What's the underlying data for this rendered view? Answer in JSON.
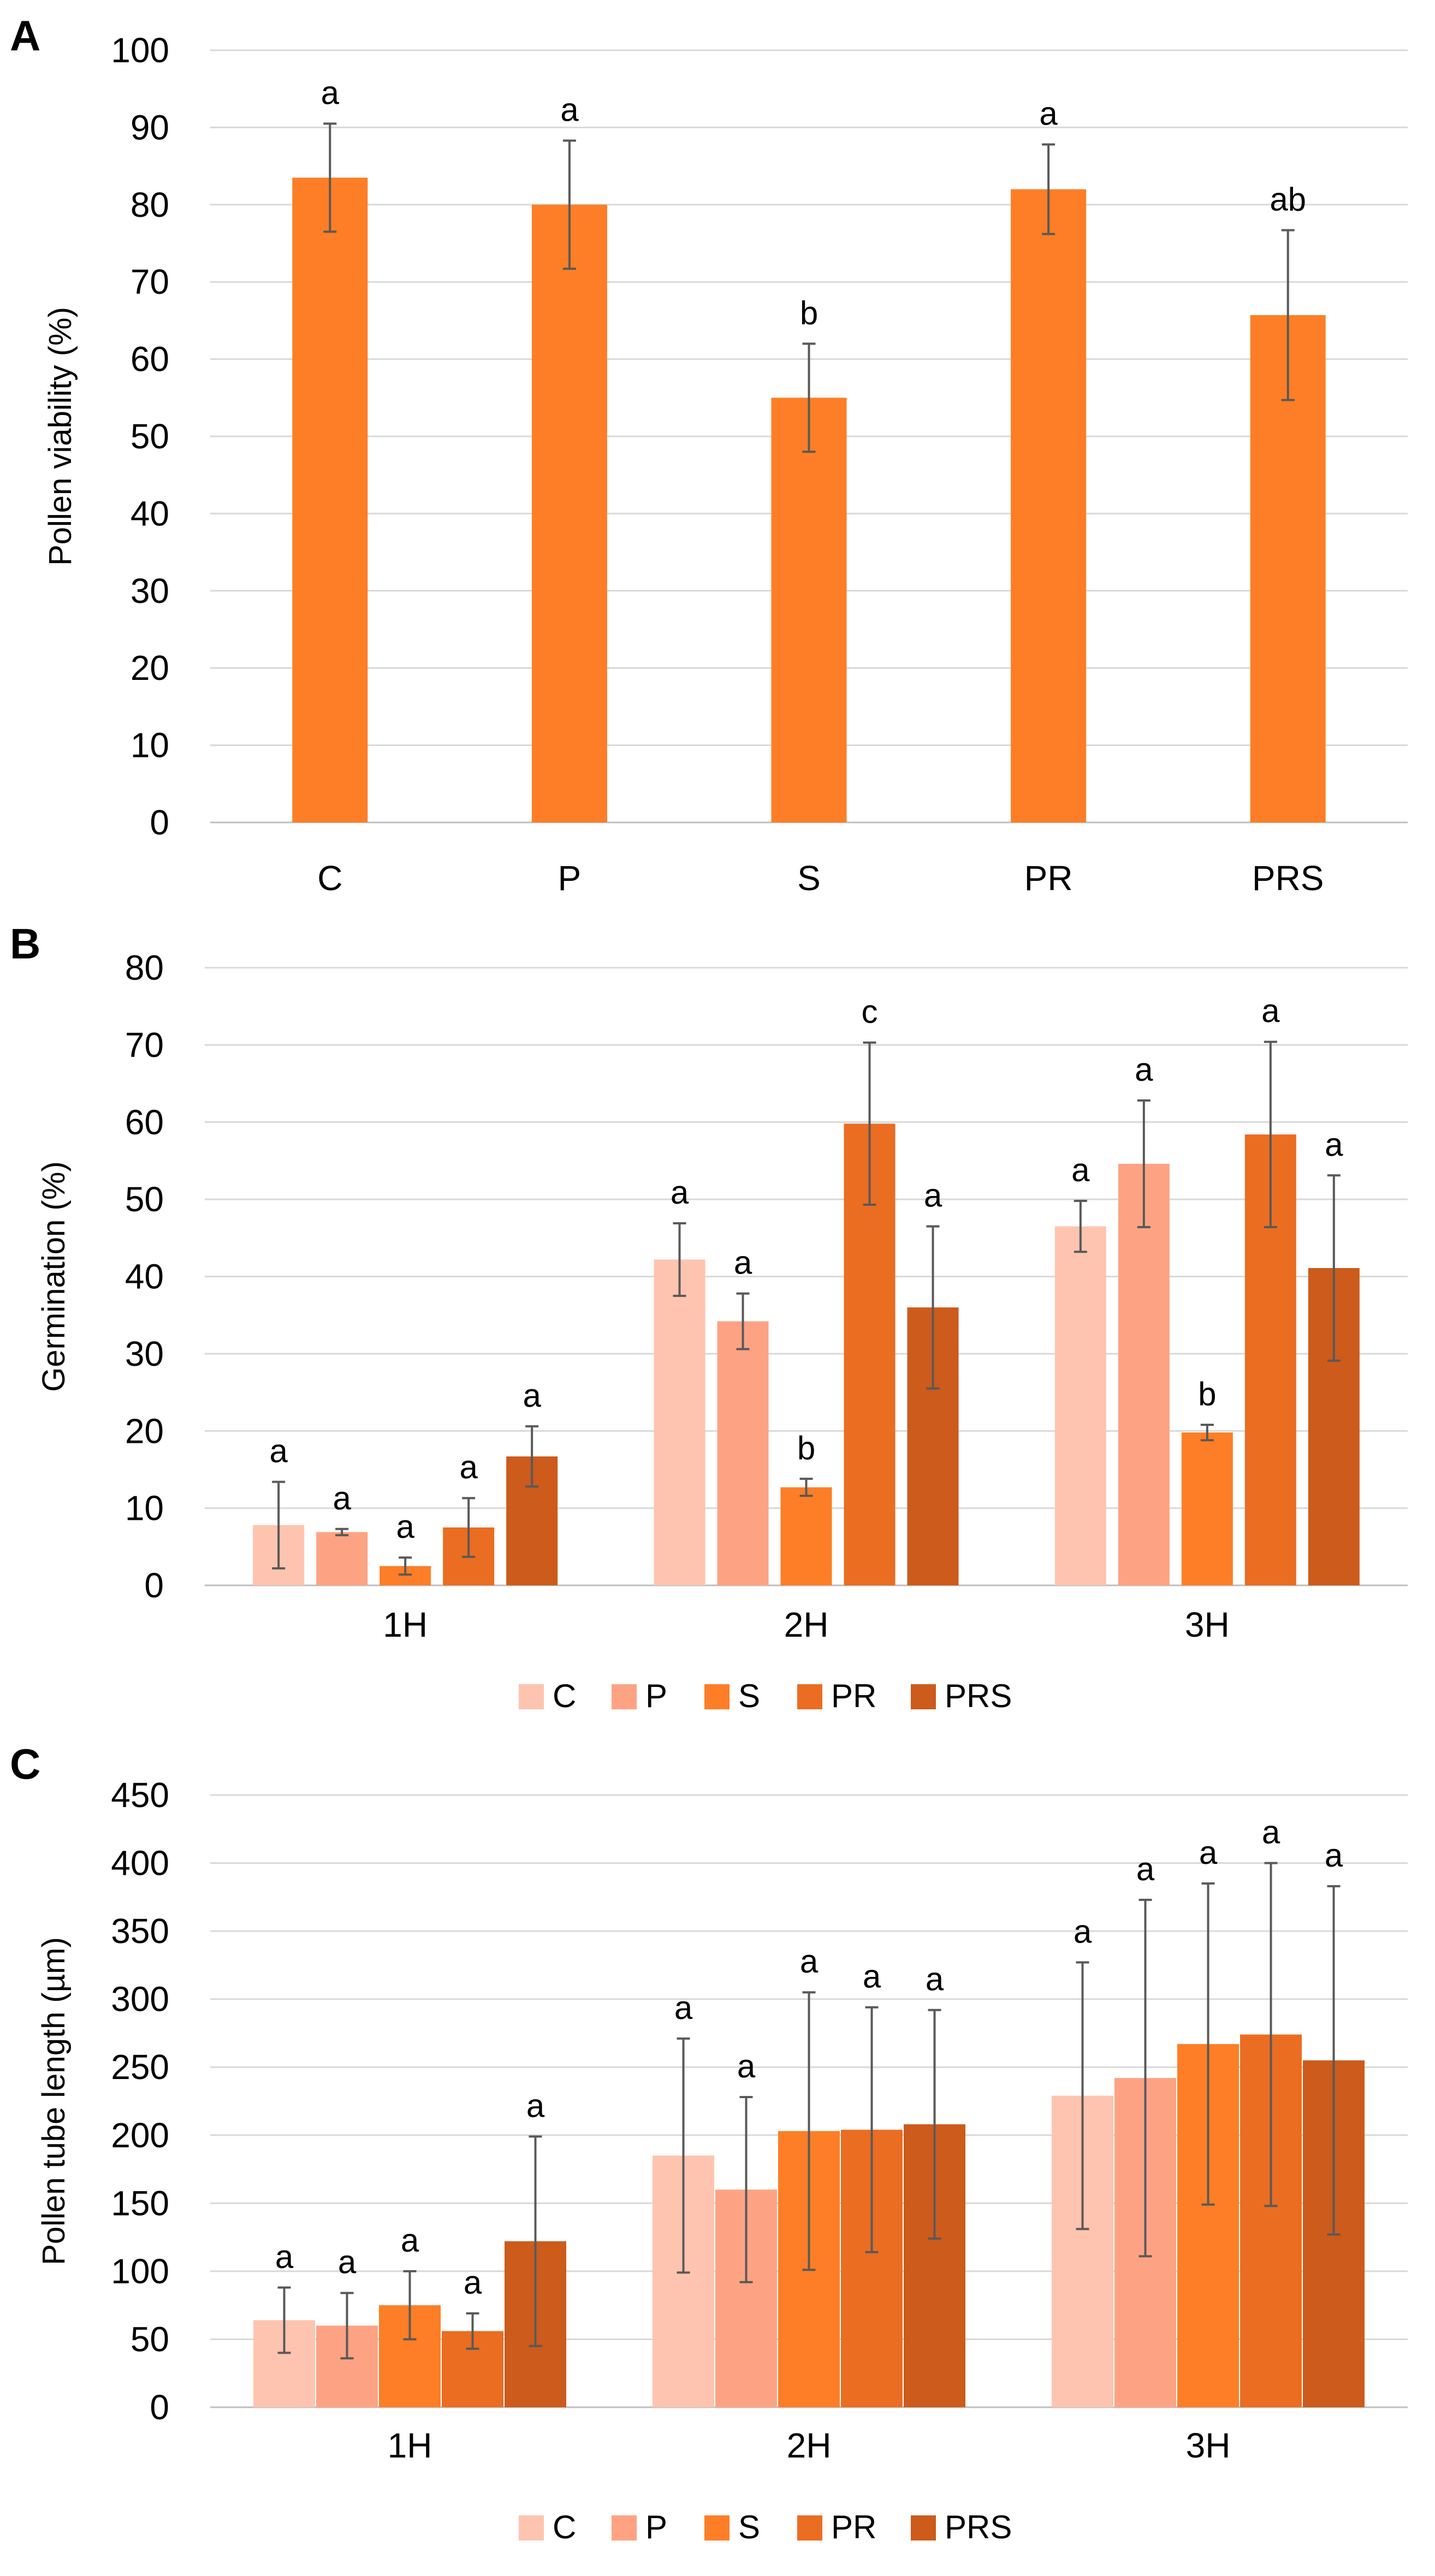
{
  "chart_data": [
    {
      "panel": "A",
      "type": "bar",
      "ylabel": "Pollen viability (%)",
      "ylim": [
        0,
        100
      ],
      "ytick_step": 10,
      "categories": [
        "C",
        "P",
        "S",
        "PR",
        "PRS"
      ],
      "series": [
        {
          "name": "Pollen viability",
          "values": [
            83.5,
            80,
            55,
            82,
            65.7
          ],
          "errors": [
            7,
            8.3,
            7,
            5.8,
            11
          ],
          "letters": [
            "a",
            "a",
            "b",
            "a",
            "ab"
          ]
        }
      ],
      "colors": [
        "#fd7e26"
      ]
    },
    {
      "panel": "B",
      "type": "bar",
      "ylabel": "Germination (%)",
      "ylim": [
        0,
        80
      ],
      "ytick_step": 10,
      "categories": [
        "1H",
        "2H",
        "3H"
      ],
      "legend": [
        "C",
        "P",
        "S",
        "PR",
        "PRS"
      ],
      "series": [
        {
          "name": "C",
          "values": [
            7.8,
            42.2,
            46.5
          ],
          "errors": [
            5.6,
            4.7,
            3.3
          ],
          "letters": [
            "a",
            "a",
            "a"
          ]
        },
        {
          "name": "P",
          "values": [
            6.9,
            34.2,
            54.6
          ],
          "errors": [
            0.4,
            3.6,
            8.2
          ],
          "letters": [
            "a",
            "a",
            "a"
          ]
        },
        {
          "name": "S",
          "values": [
            2.5,
            12.7,
            19.8
          ],
          "errors": [
            1.1,
            1.1,
            1.0
          ],
          "letters": [
            "a",
            "b",
            "b"
          ]
        },
        {
          "name": "PR",
          "values": [
            7.5,
            59.8,
            58.4
          ],
          "errors": [
            3.8,
            10.5,
            12.0
          ],
          "letters": [
            "a",
            "c",
            "a"
          ]
        },
        {
          "name": "PRS",
          "values": [
            16.7,
            36.0,
            41.1
          ],
          "errors": [
            3.9,
            10.5,
            12.0
          ],
          "letters": [
            "a",
            "a",
            "a"
          ]
        }
      ],
      "colors": [
        "#fec4b0",
        "#fda384",
        "#fd7e26",
        "#ea6d22",
        "#cc5b1c"
      ]
    },
    {
      "panel": "C",
      "type": "bar",
      "ylabel": "Pollen tube length (µm)",
      "ylim": [
        0,
        450
      ],
      "ytick_step": 50,
      "categories": [
        "1H",
        "2H",
        "3H"
      ],
      "legend": [
        "C",
        "P",
        "S",
        "PR",
        "PRS"
      ],
      "series": [
        {
          "name": "C",
          "values": [
            64,
            185,
            229
          ],
          "errors": [
            24,
            86,
            98
          ],
          "letters": [
            "a",
            "a",
            "a"
          ]
        },
        {
          "name": "P",
          "values": [
            60,
            160,
            242
          ],
          "errors": [
            24,
            68,
            131
          ],
          "letters": [
            "a",
            "a",
            "a"
          ]
        },
        {
          "name": "S",
          "values": [
            75,
            203,
            267
          ],
          "errors": [
            25,
            102,
            118
          ],
          "letters": [
            "a",
            "a",
            "a"
          ]
        },
        {
          "name": "PR",
          "values": [
            56,
            204,
            274
          ],
          "errors": [
            13,
            90,
            126
          ],
          "letters": [
            "a",
            "a",
            "a"
          ]
        },
        {
          "name": "PRS",
          "values": [
            122,
            208,
            255
          ],
          "errors": [
            77,
            84,
            128
          ],
          "letters": [
            "a",
            "a",
            "a"
          ]
        }
      ],
      "colors": [
        "#fec4b0",
        "#fda384",
        "#fd7e26",
        "#ea6d22",
        "#cc5b1c"
      ]
    }
  ]
}
